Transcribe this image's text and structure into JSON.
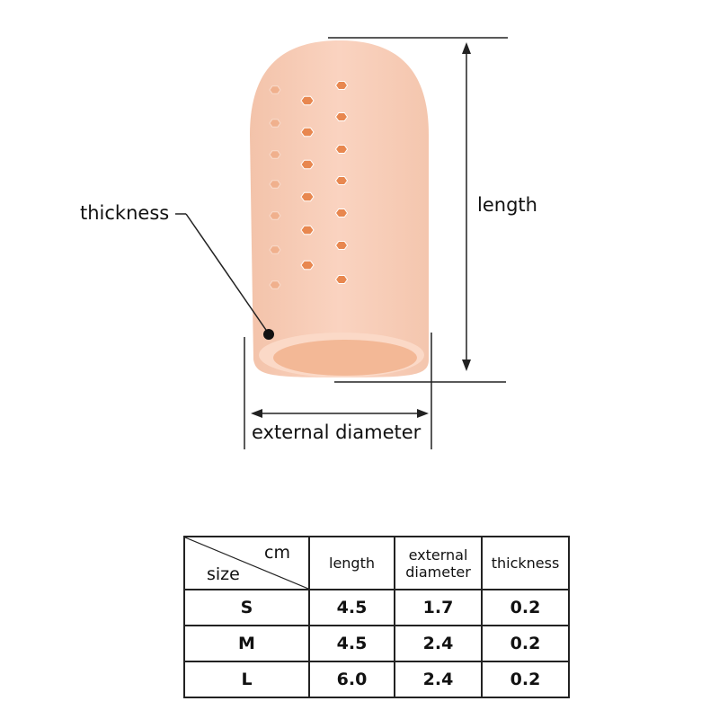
{
  "diagram": {
    "labels": {
      "thickness": "thickness",
      "length": "length",
      "external_diameter": "external diameter"
    },
    "product_color": "#f6c8b0",
    "hole_color": "#e8874f"
  },
  "size_table": {
    "corner_unit": "cm",
    "corner_size": "size",
    "headers": [
      "length",
      "external diameter",
      "thickness"
    ],
    "header_lines": {
      "external_1": "external",
      "external_2": "diameter"
    },
    "rows": [
      {
        "size": "S",
        "length": "4.5",
        "external_diameter": "1.7",
        "thickness": "0.2"
      },
      {
        "size": "M",
        "length": "4.5",
        "external_diameter": "2.4",
        "thickness": "0.2"
      },
      {
        "size": "L",
        "length": "6.0",
        "external_diameter": "2.4",
        "thickness": "0.2"
      }
    ]
  }
}
